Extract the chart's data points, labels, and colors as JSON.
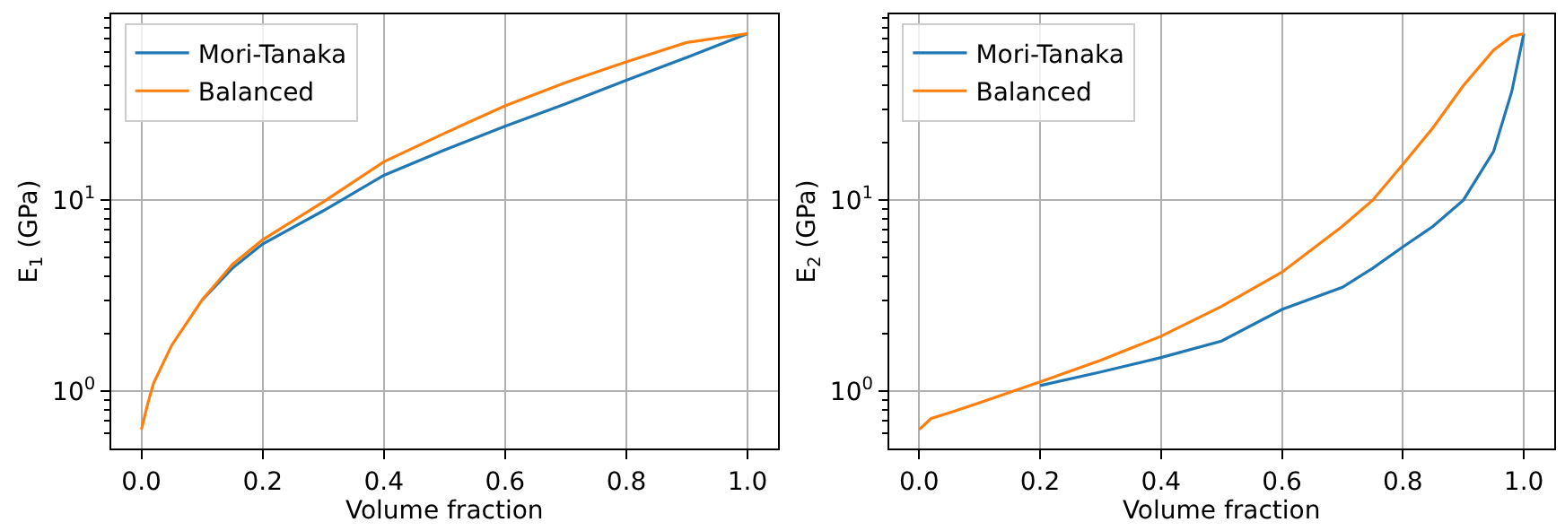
{
  "chart_data": [
    {
      "type": "line",
      "xlabel": "Volume fraction",
      "ylabel": "E$_{1}$ (GPa)",
      "log": true,
      "grid": true,
      "legend": "top left",
      "x": [
        0,
        0.01,
        0.02,
        0.05,
        0.1,
        0.15,
        0.2,
        0.3,
        0.4,
        0.5,
        0.6,
        0.7,
        0.8,
        0.9,
        1.0
      ],
      "series": [
        {
          "name": "Mori-Tanaka",
          "color": "#1f77b4",
          "values": [
            null,
            null,
            null,
            null,
            3.0,
            4.4,
            5.9,
            8.8,
            13.5,
            18.3,
            24.4,
            32,
            42.5,
            56,
            74.5
          ]
        },
        {
          "name": "Balanced",
          "color": "#ff7f0e",
          "values": [
            0.63,
            0.85,
            1.1,
            1.74,
            3.0,
            4.6,
            6.2,
            9.8,
            15.9,
            22.4,
            31.2,
            41.3,
            53,
            67,
            74.5
          ]
        }
      ],
      "xlim": [
        -0.05,
        1.05
      ],
      "xticks": [
        {
          "value": 0,
          "label": "0.0"
        },
        {
          "value": 0.2,
          "label": "0.2"
        },
        {
          "value": 0.4,
          "label": "0.4"
        },
        {
          "value": 0.6,
          "label": "0.6"
        },
        {
          "value": 0.8,
          "label": "0.8"
        },
        {
          "value": 1.0,
          "label": "1.0"
        }
      ],
      "ylim": [
        0.5,
        94
      ],
      "yticks": [
        {
          "value": 0.6,
          "label": null
        },
        {
          "value": 0.7,
          "label": null
        },
        {
          "value": 0.8,
          "label": null
        },
        {
          "value": 0.9,
          "label": null
        },
        {
          "value": 1,
          "label": "10$^{0}$"
        },
        {
          "value": 2,
          "label": null
        },
        {
          "value": 3,
          "label": null
        },
        {
          "value": 4,
          "label": null
        },
        {
          "value": 5,
          "label": null
        },
        {
          "value": 6,
          "label": null
        },
        {
          "value": 7,
          "label": null
        },
        {
          "value": 8,
          "label": null
        },
        {
          "value": 9,
          "label": null
        },
        {
          "value": 10,
          "label": "10$^{1}$"
        },
        {
          "value": 20,
          "label": null
        },
        {
          "value": 30,
          "label": null
        },
        {
          "value": 40,
          "label": null
        },
        {
          "value": 50,
          "label": null
        },
        {
          "value": 60,
          "label": null
        },
        {
          "value": 70,
          "label": null
        },
        {
          "value": 80,
          "label": null
        },
        {
          "value": 90,
          "label": null
        }
      ]
    },
    {
      "type": "line",
      "xlabel": "Volume fraction",
      "ylabel": "E$_{2}$ (GPa)",
      "log": true,
      "grid": true,
      "legend": "top left",
      "x": [
        0,
        0.02,
        0.05,
        0.1,
        0.2,
        0.3,
        0.4,
        0.5,
        0.6,
        0.7,
        0.75,
        0.8,
        0.85,
        0.9,
        0.95,
        0.98,
        1.0
      ],
      "series": [
        {
          "name": "Mori-Tanaka",
          "color": "#1f77b4",
          "values": [
            null,
            null,
            null,
            null,
            1.07,
            1.26,
            1.5,
            1.83,
            2.68,
            3.5,
            4.4,
            5.7,
            7.3,
            10,
            18,
            37,
            74.5
          ]
        },
        {
          "name": "Balanced",
          "color": "#ff7f0e",
          "values": [
            0.63,
            0.72,
            0.77,
            0.87,
            1.12,
            1.45,
            1.94,
            2.78,
            4.2,
            7.3,
            10,
            15.4,
            24,
            39.8,
            61,
            72,
            74.5
          ]
        }
      ],
      "xlim": [
        -0.05,
        1.05
      ],
      "xticks": [
        {
          "value": 0,
          "label": "0.0"
        },
        {
          "value": 0.2,
          "label": "0.2"
        },
        {
          "value": 0.4,
          "label": "0.4"
        },
        {
          "value": 0.6,
          "label": "0.6"
        },
        {
          "value": 0.8,
          "label": "0.8"
        },
        {
          "value": 1.0,
          "label": "1.0"
        }
      ],
      "ylim": [
        0.5,
        94
      ],
      "yticks": [
        {
          "value": 0.6,
          "label": null
        },
        {
          "value": 0.7,
          "label": null
        },
        {
          "value": 0.8,
          "label": null
        },
        {
          "value": 0.9,
          "label": null
        },
        {
          "value": 1,
          "label": "10$^{0}$"
        },
        {
          "value": 2,
          "label": null
        },
        {
          "value": 3,
          "label": null
        },
        {
          "value": 4,
          "label": null
        },
        {
          "value": 5,
          "label": null
        },
        {
          "value": 6,
          "label": null
        },
        {
          "value": 7,
          "label": null
        },
        {
          "value": 8,
          "label": null
        },
        {
          "value": 9,
          "label": null
        },
        {
          "value": 10,
          "label": "10$^{1}$"
        },
        {
          "value": 20,
          "label": null
        },
        {
          "value": 30,
          "label": null
        },
        {
          "value": 40,
          "label": null
        },
        {
          "value": 50,
          "label": null
        },
        {
          "value": 60,
          "label": null
        },
        {
          "value": 70,
          "label": null
        },
        {
          "value": 80,
          "label": null
        },
        {
          "value": 90,
          "label": null
        }
      ]
    }
  ]
}
